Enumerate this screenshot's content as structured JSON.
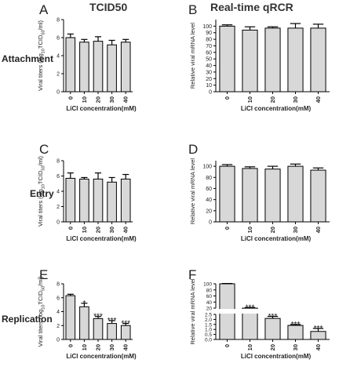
{
  "column_titles": [
    "TCID50",
    "Real-time qRCR"
  ],
  "row_titles": [
    "Attachment",
    "Entry",
    "Replication"
  ],
  "colors": {
    "bar_fill": "#d8d8d8",
    "axis": "#000000",
    "text": "#222222"
  },
  "chart_data": [
    {
      "panel": "A",
      "type": "bar",
      "categories": [
        "0",
        "10",
        "20",
        "30",
        "40"
      ],
      "values": [
        6.0,
        5.5,
        5.6,
        5.2,
        5.5
      ],
      "errors": [
        0.4,
        0.3,
        0.5,
        0.5,
        0.3
      ],
      "annotations": [
        "",
        "",
        "",
        "",
        ""
      ],
      "xlabel": "LiCl concentration(mM)",
      "ylabel": "Viral titers (log",
      "ylabel_sub": "10",
      "ylabel_rest": "TCID",
      "ylabel_sub2": "50",
      "ylabel_end": "/ml)",
      "ylim": [
        0,
        8
      ],
      "yticks": [
        "0",
        "2",
        "4",
        "6",
        "8"
      ]
    },
    {
      "panel": "B",
      "type": "bar",
      "categories": [
        "0",
        "10",
        "20",
        "30",
        "40"
      ],
      "values": [
        100,
        94,
        97,
        97,
        97
      ],
      "errors": [
        2,
        5,
        2,
        7,
        6
      ],
      "annotations": [
        "",
        "",
        "",
        "",
        ""
      ],
      "xlabel": "LiCl concentration(mM)",
      "ylabel": "Relative viral mRNA level",
      "ylim": [
        0,
        110
      ],
      "yticks": [
        "0",
        "10",
        "20",
        "30",
        "40",
        "50",
        "60",
        "70",
        "80",
        "90",
        "100"
      ]
    },
    {
      "panel": "C",
      "type": "bar",
      "categories": [
        "0",
        "10",
        "20",
        "30",
        "40"
      ],
      "values": [
        5.7,
        5.6,
        5.6,
        5.2,
        5.6
      ],
      "errors": [
        0.7,
        0.2,
        0.8,
        0.6,
        0.6
      ],
      "annotations": [
        "",
        "",
        "",
        "",
        ""
      ],
      "xlabel": "LiCl concentration(mM)",
      "ylabel": "Viral titers (log",
      "ylabel_sub": "10",
      "ylabel_rest": "TCID",
      "ylabel_sub2": "50",
      "ylabel_end": "/ml)",
      "ylim": [
        0,
        8
      ],
      "yticks": [
        "0",
        "2",
        "4",
        "6",
        "8"
      ]
    },
    {
      "panel": "D",
      "type": "bar",
      "categories": [
        "0",
        "10",
        "20",
        "30",
        "40"
      ],
      "values": [
        100,
        96,
        95,
        100,
        93
      ],
      "errors": [
        3,
        3,
        5,
        4,
        4
      ],
      "annotations": [
        "",
        "",
        "",
        "",
        ""
      ],
      "xlabel": "LiCl concentration(mM)",
      "ylabel": "Relative viral mRNA level",
      "ylim": [
        0,
        110
      ],
      "yticks": [
        "0",
        "20",
        "40",
        "60",
        "80",
        "100"
      ]
    },
    {
      "panel": "E",
      "type": "bar",
      "categories": [
        "0",
        "10",
        "20",
        "30",
        "40"
      ],
      "values": [
        6.3,
        4.7,
        3.0,
        2.3,
        2.0
      ],
      "errors": [
        0.2,
        0.5,
        0.3,
        0.4,
        0.3
      ],
      "annotations": [
        "",
        "*",
        "***",
        "***",
        "***"
      ],
      "xlabel": "LiCl concentration(mM)",
      "ylabel": "Viral titers (log",
      "ylabel_sub": "10",
      "ylabel_rest": "TCID",
      "ylabel_sub2": "50",
      "ylabel_end": "/ml)",
      "ylim": [
        0,
        8
      ],
      "yticks": [
        "0",
        "2",
        "4",
        "6",
        "8"
      ]
    },
    {
      "panel": "F",
      "type": "bar",
      "categories": [
        "0",
        "10",
        "20",
        "30",
        "40"
      ],
      "values": [
        100,
        20,
        2.1,
        1.4,
        0.8
      ],
      "errors": [
        1,
        2,
        0.2,
        0.1,
        0.3
      ],
      "annotations": [
        "",
        "***",
        "***",
        "***",
        "***"
      ],
      "xlabel": "LiCl concentration(mM)",
      "ylabel": "Relative viral mRNA level",
      "broken_axis": true,
      "ylim": [
        0,
        100
      ],
      "lower_range": [
        0,
        2.5
      ],
      "upper_range": [
        20,
        100
      ],
      "yticks_lower": [
        "0.0",
        "0.5",
        "1.0",
        "1.5",
        "2.0",
        "2.5"
      ],
      "yticks_upper": [
        "20",
        "40",
        "60",
        "80",
        "100"
      ]
    }
  ]
}
